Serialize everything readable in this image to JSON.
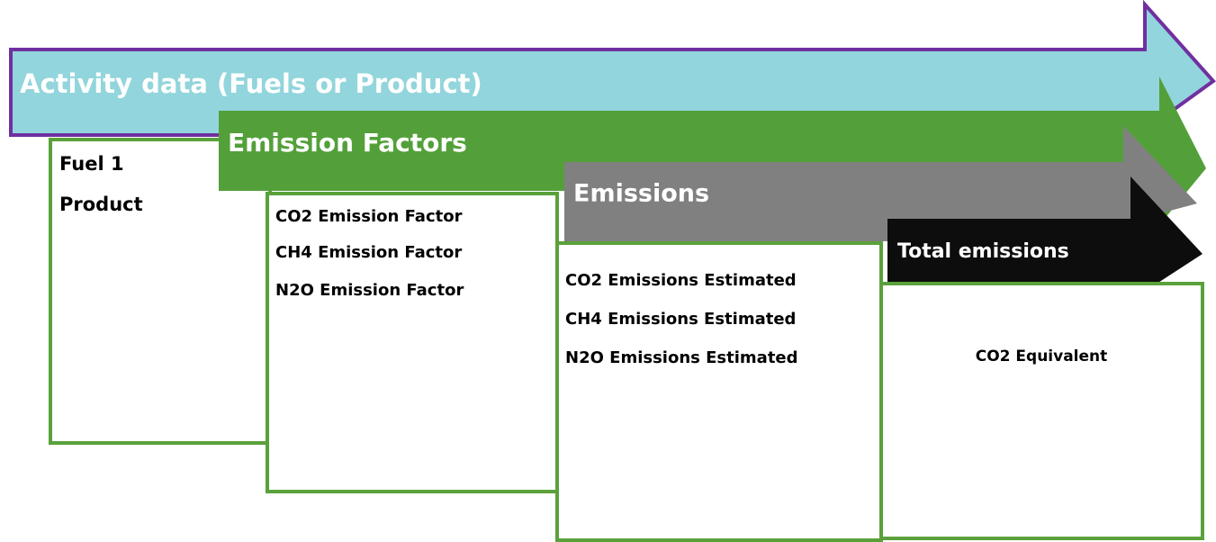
{
  "stages": [
    {
      "title": "Activity data  (Fuels or Product)",
      "items": [
        "Fuel 1",
        "Product"
      ]
    },
    {
      "title": "Emission Factors",
      "items": [
        "CO2 Emission Factor",
        "CH4 Emission Factor",
        "N2O Emission Factor"
      ]
    },
    {
      "title": "Emissions",
      "items": [
        "CO2 Emissions Estimated",
        "CH4 Emissions Estimated",
        "N2O Emissions Estimated"
      ]
    },
    {
      "title": "Total emissions",
      "items": [
        "CO2 Equivalent"
      ]
    }
  ]
}
